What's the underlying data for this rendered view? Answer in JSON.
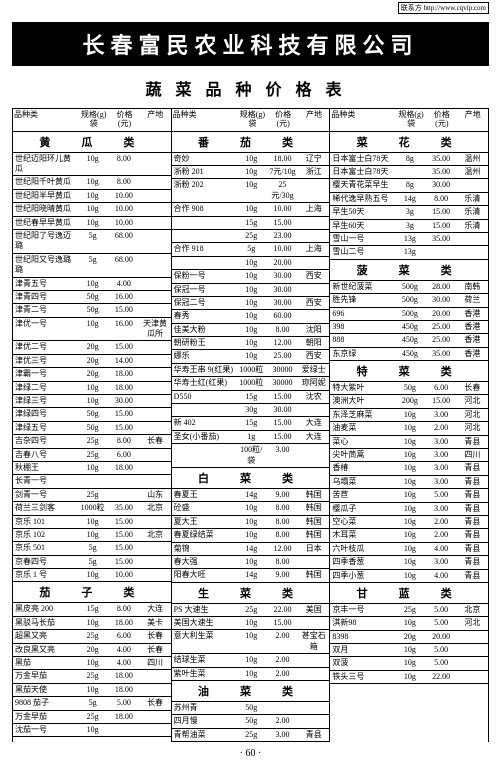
{
  "url_label": "联系方 http://www.cqvip.com",
  "company": "长春富民农业科技有限公司",
  "subtitle": "蔬菜品种价格表",
  "page_number": "· 60 ·",
  "col_headers": {
    "c1": "品种类",
    "c2": "规格(g)袋",
    "c3": "价格(元)",
    "c4": "产地"
  },
  "columns": [
    {
      "sections": [
        {
          "category": "黄　瓜　类",
          "rows": [
            {
              "n": "世纪迈阳环儿黄瓜",
              "s": "10g",
              "p": "8.00",
              "o": ""
            },
            {
              "n": "世纪阳千叶黄瓜",
              "s": "10g",
              "p": "8.00",
              "o": ""
            },
            {
              "n": "世纪阳半早黄瓜",
              "s": "10g",
              "p": "10.00",
              "o": ""
            },
            {
              "n": "世纪阳晓晴黄瓜",
              "s": "10g",
              "p": "10.00",
              "o": ""
            },
            {
              "n": "世纪春早早黄瓜",
              "s": "10g",
              "p": "10.00",
              "o": ""
            },
            {
              "n": "世纪阳了号逸迈璐",
              "s": "5g",
              "p": "68.00",
              "o": ""
            },
            {
              "n": "世纪阳又号逸璐璐",
              "s": "5g",
              "p": "68.00",
              "o": ""
            },
            {
              "n": "津青五号",
              "s": "10g",
              "p": "4.00",
              "o": ""
            },
            {
              "n": "津青四号",
              "s": "50g",
              "p": "16.00",
              "o": ""
            },
            {
              "n": "津青二号",
              "s": "50g",
              "p": "15.00",
              "o": ""
            },
            {
              "n": "津优一号",
              "s": "10g",
              "p": "16.00",
              "o": "天津黄瓜所"
            },
            {
              "n": "津优二号",
              "s": "20g",
              "p": "15.00",
              "o": ""
            },
            {
              "n": "津优三号",
              "s": "20g",
              "p": "14.00",
              "o": ""
            },
            {
              "n": "津霸一号",
              "s": "20g",
              "p": "18.00",
              "o": ""
            },
            {
              "n": "津绿二号",
              "s": "10g",
              "p": "18.00",
              "o": ""
            },
            {
              "n": "津绿三号",
              "s": "10g",
              "p": "30.00",
              "o": ""
            },
            {
              "n": "津绿四号",
              "s": "50g",
              "p": "15.00",
              "o": ""
            },
            {
              "n": "津绿五号",
              "s": "50g",
              "p": "15.00",
              "o": ""
            },
            {
              "n": "吉杂四号",
              "s": "25g",
              "p": "8.00",
              "o": "长春"
            },
            {
              "n": "吉春八号",
              "s": "25g",
              "p": "6.00",
              "o": ""
            },
            {
              "n": "秋棚王",
              "s": "10g",
              "p": "18.00",
              "o": ""
            },
            {
              "n": "长青一号",
              "s": "",
              "p": "",
              "o": ""
            },
            {
              "n": "剑青一号",
              "s": "25g",
              "p": "",
              "o": "山东"
            },
            {
              "n": "荷兰三剑客",
              "s": "1000粒",
              "p": "35.00",
              "o": "北京"
            },
            {
              "n": "京乐 101",
              "s": "10g",
              "p": "15.00",
              "o": ""
            },
            {
              "n": "京乐 102",
              "s": "10g",
              "p": "15.00",
              "o": "北京"
            },
            {
              "n": "京乐 501",
              "s": "5g",
              "p": "15.00",
              "o": ""
            },
            {
              "n": "京春四号",
              "s": "5g",
              "p": "15.00",
              "o": ""
            },
            {
              "n": "京乐 1 号",
              "s": "10g",
              "p": "10.00",
              "o": ""
            }
          ]
        },
        {
          "category": "茄　子　类",
          "rows": [
            {
              "n": "黑皮亮 200",
              "s": "15g",
              "p": "8.00",
              "o": "大连"
            },
            {
              "n": "黑驳马长茄",
              "s": "10g",
              "p": "18.00",
              "o": "美卡"
            },
            {
              "n": "超黑又亮",
              "s": "25g",
              "p": "6.00",
              "o": "长春"
            },
            {
              "n": "改良黑又亮",
              "s": "20g",
              "p": "4.00",
              "o": "长春"
            },
            {
              "n": "黑茄",
              "s": "10g",
              "p": "4.00",
              "o": "四川"
            },
            {
              "n": "万金早茄",
              "s": "25g",
              "p": "18.00",
              "o": ""
            },
            {
              "n": "黑茄天使",
              "s": "10g",
              "p": "18.00",
              "o": ""
            },
            {
              "n": "9808 茄子",
              "s": "5g",
              "p": "5.00",
              "o": "长春"
            },
            {
              "n": "万金早茄",
              "s": "25g",
              "p": "18.00",
              "o": ""
            },
            {
              "n": "沈茄一号",
              "s": "10g",
              "p": "",
              "o": ""
            }
          ]
        }
      ]
    },
    {
      "sections": [
        {
          "category": "番　茄　类",
          "rows": [
            {
              "n": "奇妙",
              "s": "10g",
              "p": "18.00",
              "o": "辽宁"
            },
            {
              "n": "浙粉 201",
              "s": "10g",
              "p": "7元/10g",
              "o": "浙江"
            },
            {
              "n": "浙粉 202",
              "s": "10g",
              "p": "25元/30g",
              "o": ""
            },
            {
              "n": "合作 908",
              "s": "10g",
              "p": "10.00",
              "o": "上海"
            },
            {
              "n": "",
              "s": "15g",
              "p": "15.00",
              "o": ""
            },
            {
              "n": "",
              "s": "25g",
              "p": "23.00",
              "o": ""
            },
            {
              "n": "合作 918",
              "s": "5g",
              "p": "10.00",
              "o": "上海"
            },
            {
              "n": "",
              "s": "10g",
              "p": "20.00",
              "o": ""
            },
            {
              "n": "保粉一号",
              "s": "10g",
              "p": "30.00",
              "o": "西安"
            },
            {
              "n": "保冠一号",
              "s": "10g",
              "p": "30.00",
              "o": ""
            },
            {
              "n": "保冠二号",
              "s": "10g",
              "p": "30.00",
              "o": "西安"
            },
            {
              "n": "春秀",
              "s": "10g",
              "p": "60.00",
              "o": ""
            },
            {
              "n": "佳美大粉",
              "s": "10g",
              "p": "8.00",
              "o": "沈阳"
            },
            {
              "n": "朝研粉王",
              "s": "10g",
              "p": "12.00",
              "o": "朝阳"
            },
            {
              "n": "娜乐",
              "s": "10g",
              "p": "25.00",
              "o": "西安"
            },
            {
              "n": "华寿王串 9(红果)",
              "s": "1000粒",
              "p": "30000",
              "o": "爱绿士"
            },
            {
              "n": "华寿士红(红果)",
              "s": "1000粒",
              "p": "30000",
              "o": "珎阿妮"
            },
            {
              "n": "D550",
              "s": "15g",
              "p": "15.00",
              "o": "沈农"
            },
            {
              "n": "",
              "s": "30g",
              "p": "30.00",
              "o": ""
            },
            {
              "n": "新 402",
              "s": "15g",
              "p": "15.00",
              "o": "大连"
            },
            {
              "n": "圣女(小番茄)",
              "s": "1g",
              "p": "15.00",
              "o": "大连"
            },
            {
              "n": "",
              "s": "100粒/袋",
              "p": "3.00",
              "o": ""
            }
          ]
        },
        {
          "category": "白　菜　类",
          "rows": [
            {
              "n": "春夏王",
              "s": "14g",
              "p": "9.00",
              "o": "韩国"
            },
            {
              "n": "砼盛",
              "s": "10g",
              "p": "8.00",
              "o": "韩国"
            },
            {
              "n": "夏大王",
              "s": "10g",
              "p": "8.00",
              "o": "韩国"
            },
            {
              "n": "春夏绿结菜",
              "s": "10g",
              "p": "8.00",
              "o": "韩国"
            },
            {
              "n": "菊锦",
              "s": "14g",
              "p": "12.00",
              "o": "日本"
            },
            {
              "n": "春大强",
              "s": "10g",
              "p": "8.00",
              "o": ""
            },
            {
              "n": "阳春大旺",
              "s": "14g",
              "p": "9.00",
              "o": "韩国"
            }
          ]
        },
        {
          "category": "生　菜　类",
          "rows": [
            {
              "n": "PS 大速生",
              "s": "25g",
              "p": "22.00",
              "o": "美国"
            },
            {
              "n": "美国大速生",
              "s": "10g",
              "p": "15.00",
              "o": ""
            },
            {
              "n": "意大利生菜",
              "s": "10g",
              "p": "2.00",
              "o": "甚宝石箱"
            },
            {
              "n": "结球生菜",
              "s": "10g",
              "p": "2.00",
              "o": ""
            },
            {
              "n": "紫叶生菜",
              "s": "10g",
              "p": "2.00",
              "o": ""
            }
          ]
        },
        {
          "category": "油　菜　类",
          "rows": [
            {
              "n": "苏州青",
              "s": "50g",
              "p": "",
              "o": ""
            },
            {
              "n": "四月慢",
              "s": "50g",
              "p": "2.00",
              "o": ""
            },
            {
              "n": "青帮油菜",
              "s": "25g",
              "p": "3.00",
              "o": "青县"
            }
          ]
        }
      ]
    },
    {
      "sections": [
        {
          "category": "菜　花　类",
          "rows": [
            {
              "n": "日本富士白78天",
              "s": "8g",
              "p": "35.00",
              "o": "温州"
            },
            {
              "n": "日本富士白78天",
              "s": "",
              "p": "35.00",
              "o": "温州"
            },
            {
              "n": "樱天青花菜早生",
              "s": "8g",
              "p": "30.00",
              "o": ""
            },
            {
              "n": "稀代逸早熟五号",
              "s": "14g",
              "p": "8.00",
              "o": "乐清"
            },
            {
              "n": "早生50天",
              "s": "3g",
              "p": "15.00",
              "o": "乐清"
            },
            {
              "n": "早生60天",
              "s": "3g",
              "p": "15.00",
              "o": "乐清"
            },
            {
              "n": "雪山一号",
              "s": "13g",
              "p": "35.00",
              "o": ""
            },
            {
              "n": "雪山二号",
              "s": "13g",
              "p": "",
              "o": ""
            }
          ]
        },
        {
          "category": "菠　菜　类",
          "rows": [
            {
              "n": "新世纪菠菜",
              "s": "500g",
              "p": "28.00",
              "o": "南韩"
            },
            {
              "n": "胜先锋",
              "s": "500g",
              "p": "30.00",
              "o": "荷兰"
            },
            {
              "n": "696",
              "s": "500g",
              "p": "20.00",
              "o": "香港"
            },
            {
              "n": "398",
              "s": "450g",
              "p": "25.00",
              "o": "香港"
            },
            {
              "n": "888",
              "s": "450g",
              "p": "25.00",
              "o": "香港"
            },
            {
              "n": "东京绿",
              "s": "450g",
              "p": "35.00",
              "o": "香港"
            }
          ]
        },
        {
          "category": "特　菜　类",
          "rows": [
            {
              "n": "特大紫叶",
              "s": "50g",
              "p": "6.00",
              "o": "长春"
            },
            {
              "n": "澳洲大叶",
              "s": "200g",
              "p": "15.00",
              "o": "河北"
            },
            {
              "n": "东泽芝麻菜",
              "s": "10g",
              "p": "3.00",
              "o": "河北"
            },
            {
              "n": "油麦菜",
              "s": "10g",
              "p": "2.00",
              "o": "河北"
            },
            {
              "n": "菜心",
              "s": "10g",
              "p": "3.00",
              "o": "青县"
            },
            {
              "n": "尖叶茼蒿",
              "s": "10g",
              "p": "3.00",
              "o": "四川"
            },
            {
              "n": "香椿",
              "s": "10g",
              "p": "3.00",
              "o": "青县"
            },
            {
              "n": "乌塌菜",
              "s": "10g",
              "p": "3.00",
              "o": "青县"
            },
            {
              "n": "苦苣",
              "s": "10g",
              "p": "5.00",
              "o": "青县"
            },
            {
              "n": "樱瓜子",
              "s": "10g",
              "p": "3.00",
              "o": "青县"
            },
            {
              "n": "空心菜",
              "s": "10g",
              "p": "2.00",
              "o": "青县"
            },
            {
              "n": "木耳菜",
              "s": "10g",
              "p": "2.00",
              "o": "青县"
            },
            {
              "n": "六叶枝瓜",
              "s": "10g",
              "p": "4.00",
              "o": "青县"
            },
            {
              "n": "四季香葱",
              "s": "10g",
              "p": "3.00",
              "o": "青县"
            },
            {
              "n": "四季小葱",
              "s": "10g",
              "p": "4.00",
              "o": "青县"
            }
          ]
        },
        {
          "category": "甘　蓝　类",
          "rows": [
            {
              "n": "京丰一号",
              "s": "25g",
              "p": "5.00",
              "o": "北京"
            },
            {
              "n": "淇新98",
              "s": "10g",
              "p": "5.00",
              "o": "河北"
            },
            {
              "n": "8398",
              "s": "20g",
              "p": "20.00",
              "o": ""
            },
            {
              "n": "双月",
              "s": "10g",
              "p": "5.00",
              "o": ""
            },
            {
              "n": "双菠",
              "s": "10g",
              "p": "5.00",
              "o": ""
            },
            {
              "n": "铁头三号",
              "s": "10g",
              "p": "22.00",
              "o": ""
            }
          ]
        }
      ]
    }
  ]
}
